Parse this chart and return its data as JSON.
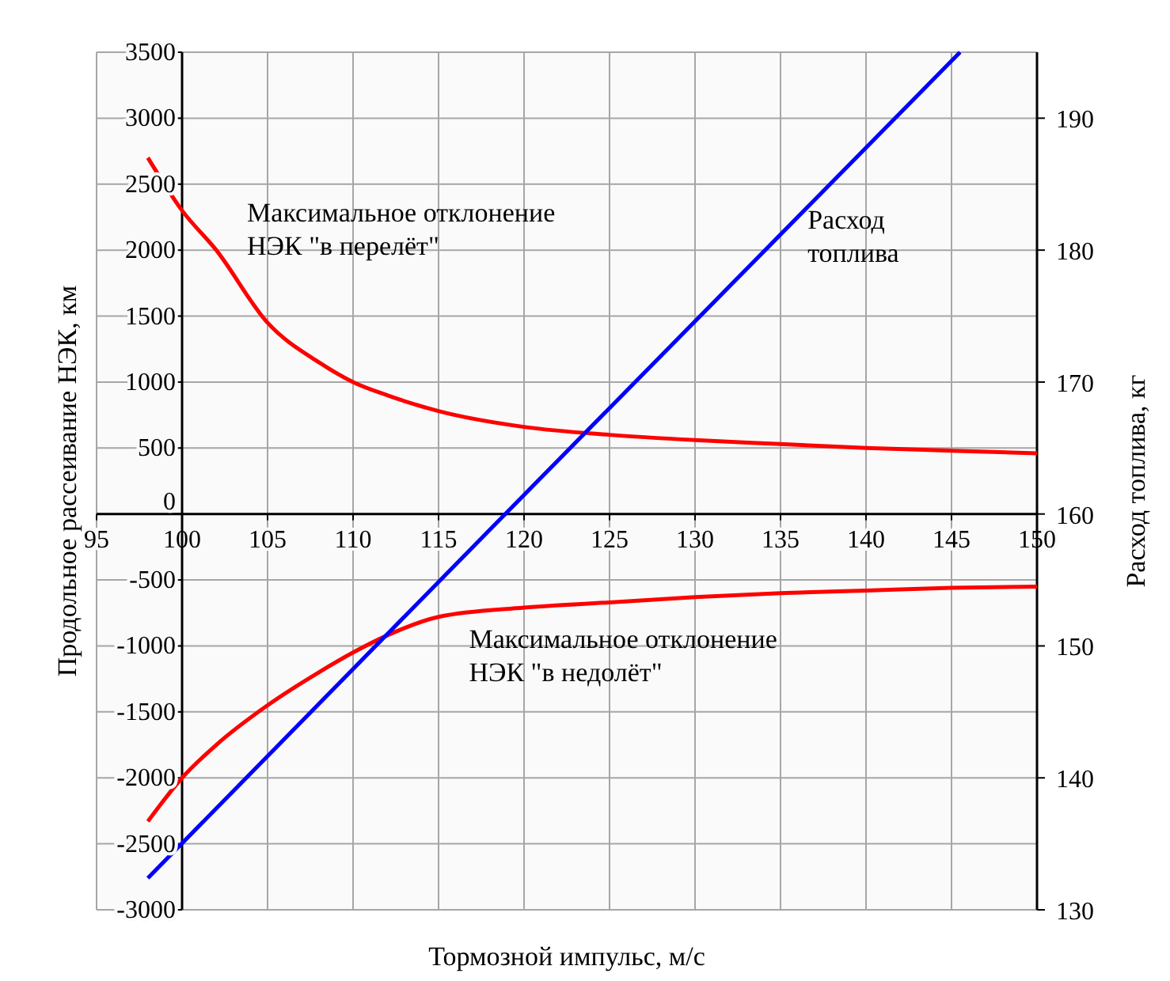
{
  "chart_data": {
    "type": "line",
    "xlabel": "Тормозной импульс, м/с",
    "ylabel": "Продольное рассеивание НЭК, км",
    "y2label": "Расход топлива, кг",
    "xlim": [
      95,
      150
    ],
    "xticks": [
      95,
      100,
      105,
      110,
      115,
      120,
      125,
      130,
      135,
      140,
      145,
      150
    ],
    "ylim": [
      -3000,
      3500
    ],
    "yticks": [
      -3000,
      -2500,
      -2000,
      -1500,
      -1000,
      -500,
      0,
      500,
      1000,
      1500,
      2000,
      2500,
      3000,
      3500
    ],
    "y2lim": [
      130,
      195
    ],
    "y2ticks": [
      130,
      140,
      150,
      160,
      170,
      180,
      190
    ],
    "grid": true,
    "line_style": "solid",
    "marker": "none",
    "series": [
      {
        "color": "#ff0000",
        "x": [
          98,
          100,
          102,
          105,
          108,
          110,
          112,
          115,
          120,
          125,
          130,
          135,
          140,
          145,
          150
        ],
        "values": [
          2700,
          2300,
          2000,
          1450,
          1150,
          1000,
          900,
          780,
          660,
          600,
          560,
          530,
          500,
          480,
          460
        ]
      },
      {
        "color": "#ff0000",
        "x": [
          98,
          100,
          102,
          105,
          108,
          110,
          112,
          115,
          120,
          125,
          130,
          135,
          140,
          145,
          150
        ],
        "values": [
          -2330,
          -2000,
          -1750,
          -1450,
          -1200,
          -1050,
          -920,
          -780,
          -710,
          -670,
          -630,
          -600,
          -580,
          -560,
          -550
        ]
      },
      {
        "color": "#0000ff",
        "axis": "y2",
        "x": [
          98,
          118.9,
          145.5
        ],
        "values": [
          132.4,
          160,
          195
        ]
      }
    ],
    "annotations": [
      "Максимальное отклонение\nНЭК \"в перелёт\"",
      "Расход\nтоплива",
      "Максимальное отклонение\nНЭК \"в недолёт\""
    ]
  }
}
